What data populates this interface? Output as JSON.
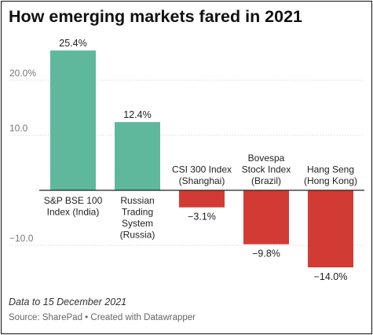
{
  "chart_data": {
    "type": "bar",
    "title": "How emerging markets fared in 2021",
    "categories": [
      [
        "S&P BSE 100",
        "Index (India)"
      ],
      [
        "Russian",
        "Trading",
        "System",
        "(Russia)"
      ],
      [
        "CSI 300 Index",
        "(Shanghai)"
      ],
      [
        "Bovespa",
        "Stock Index",
        "(Brazil)"
      ],
      [
        "Hang Seng",
        "(Hong Kong)"
      ]
    ],
    "values": [
      25.4,
      12.4,
      -3.1,
      -9.8,
      -14.0
    ],
    "value_labels": [
      "25.4%",
      "12.4%",
      "−3.1%",
      "−9.8%",
      "−14.0%"
    ],
    "yticks": [
      20,
      10,
      -10
    ],
    "ytick_labels": [
      "20.0%",
      "10.0",
      "−10.0"
    ],
    "ylim": [
      -15,
      27
    ],
    "grid": true,
    "colors": {
      "positive": "#5fb89c",
      "negative": "#d23b33"
    },
    "xlabel": "",
    "ylabel": ""
  },
  "footer": {
    "note": "Data to 15 December 2021",
    "source": "Source: SharePad • Created with Datawrapper"
  }
}
